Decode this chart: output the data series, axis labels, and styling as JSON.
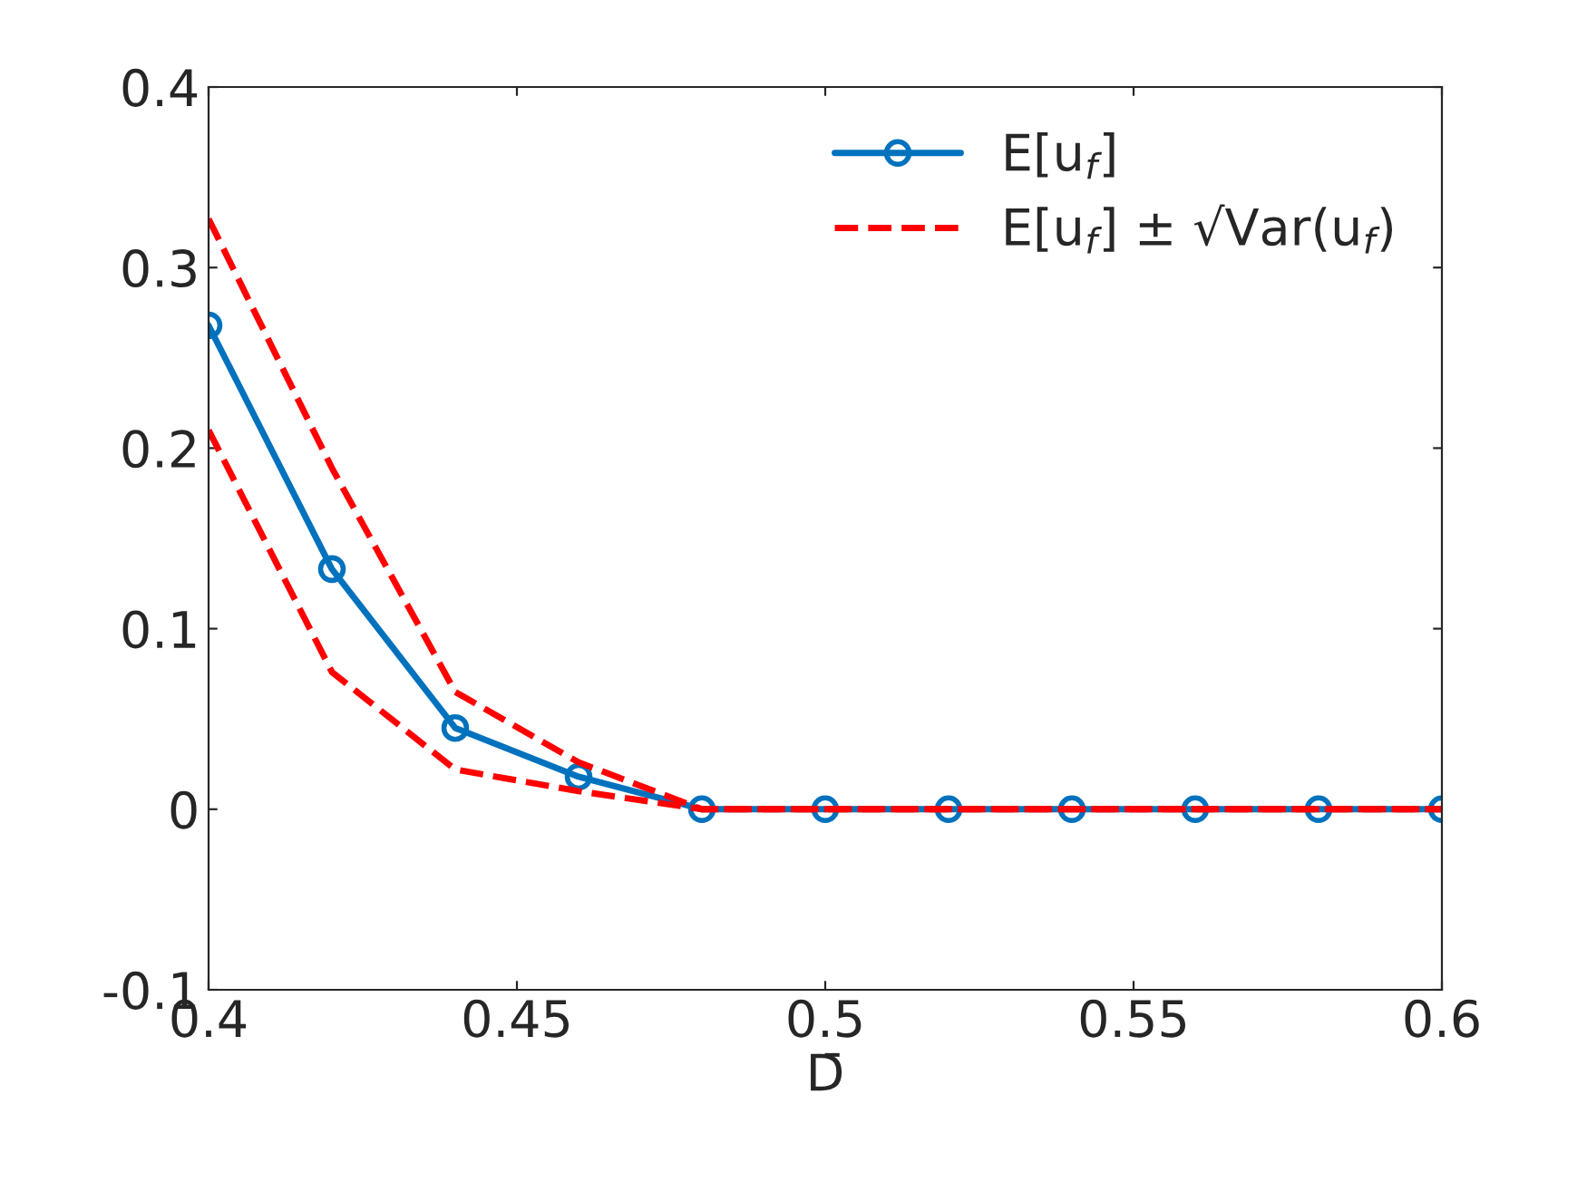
{
  "chart_data": {
    "type": "line",
    "xlabel": "D̄",
    "x": [
      0.4,
      0.42,
      0.44,
      0.46,
      0.48,
      0.5,
      0.52,
      0.54,
      0.56,
      0.58,
      0.6
    ],
    "series": [
      {
        "name": "E[u$_{f}$]",
        "color": "#0072bd",
        "marker": "circle",
        "line_style": "solid",
        "values": [
          0.268,
          0.133,
          0.045,
          0.018,
          0,
          0,
          0,
          0,
          0,
          0,
          0
        ]
      },
      {
        "name": "E[u$_{f}$] ± √Var(u$_{f}$)",
        "color": "#ff0000",
        "marker": "none",
        "line_style": "dashed",
        "values": [
          0.327,
          0.189,
          0.065,
          0.026,
          0,
          0,
          0,
          0,
          0,
          0,
          0
        ]
      },
      {
        "color": "#ff0000",
        "marker": "none",
        "line_style": "dashed",
        "values": [
          0.21,
          0.076,
          0.022,
          0.01,
          0,
          0,
          0,
          0,
          0,
          0,
          0
        ]
      }
    ],
    "xlim": [
      0.4,
      0.6
    ],
    "xticks": [
      0.4,
      0.45,
      0.5,
      0.55,
      0.6
    ],
    "ylim": [
      -0.1,
      0.4
    ],
    "yticks": [
      -0.1,
      0,
      0.1,
      0.2,
      0.3,
      0.4
    ],
    "grid": false,
    "legend": "top right"
  }
}
